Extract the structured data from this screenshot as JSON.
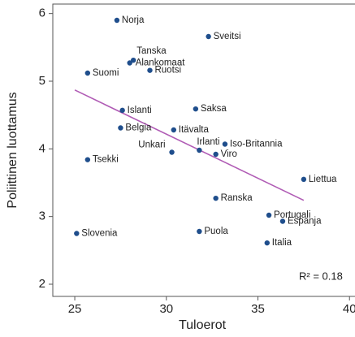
{
  "chart_data": {
    "type": "scatter",
    "x_label": "Tuloerot",
    "y_label": "Poliittinen luottamus",
    "annotation": "R² = 0.18",
    "color": "#1f4e8c",
    "fit_color": "#b05cb5",
    "xlim": [
      23.8,
      40.3
    ],
    "ylim": [
      1.82,
      6.14
    ],
    "xticks": [
      25,
      30,
      35,
      40
    ],
    "yticks": [
      2,
      3,
      4,
      5,
      6
    ],
    "labels": [
      "Norja",
      "Sveitsi",
      "Tanska",
      "Alankomaat",
      "Suomi",
      "Ruotsi",
      "Islanti",
      "Saksa",
      "Belgia",
      "Itävalta",
      "Unkari",
      "Irlanti",
      "Iso-Britannia",
      "Viro",
      "Tsekki",
      "Liettua",
      "Ranska",
      "Portugali",
      "Espanja",
      "Slovenia",
      "Puola",
      "Italia"
    ],
    "x": [
      27.3,
      32.3,
      28.2,
      28.0,
      25.7,
      29.1,
      27.6,
      31.6,
      27.5,
      30.4,
      30.3,
      31.8,
      33.2,
      32.7,
      25.7,
      37.5,
      32.7,
      35.6,
      36.35,
      25.1,
      31.8,
      35.5
    ],
    "y": [
      5.9,
      5.66,
      5.31,
      5.27,
      5.12,
      5.16,
      4.57,
      4.59,
      4.31,
      4.28,
      3.95,
      3.98,
      4.07,
      3.92,
      3.84,
      3.55,
      3.27,
      3.02,
      2.93,
      2.75,
      2.78,
      2.61
    ],
    "fit_x": [
      25,
      37.5
    ],
    "fit_y": [
      4.87,
      3.24
    ]
  }
}
